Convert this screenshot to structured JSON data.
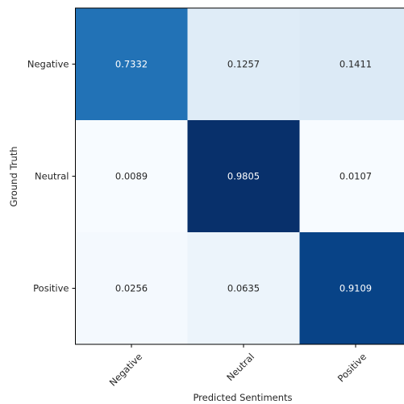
{
  "chart_data": {
    "type": "heatmap",
    "title": "",
    "xlabel": "Predicted Sentiments",
    "ylabel": "Ground Truth",
    "x_categories": [
      "Negative",
      "Neutral",
      "Positive"
    ],
    "y_categories": [
      "Negative",
      "Neutral",
      "Positive"
    ],
    "values": [
      [
        0.7332,
        0.1257,
        0.1411
      ],
      [
        0.0089,
        0.9805,
        0.0107
      ],
      [
        0.0256,
        0.0635,
        0.9109
      ]
    ],
    "value_labels": [
      [
        "0.7332",
        "0.1257",
        "0.1411"
      ],
      [
        "0.0089",
        "0.9805",
        "0.0107"
      ],
      [
        "0.0256",
        "0.0635",
        "0.9109"
      ]
    ],
    "colormap": "Blues",
    "colors": {
      "low": "#f7fbff",
      "high": "#08306b",
      "text_dark": "#262626",
      "text_light": "#ffffff"
    },
    "grid": false,
    "legend": "none"
  }
}
